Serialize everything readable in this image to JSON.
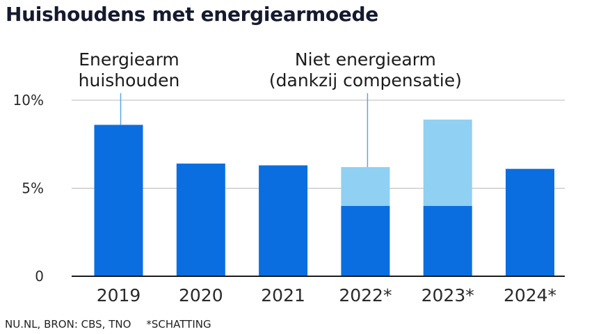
{
  "chart_data": {
    "type": "bar",
    "stacked": true,
    "title": "Huishoudens met energiearmoede",
    "categories": [
      "2019",
      "2020",
      "2021",
      "2022*",
      "2023*",
      "2024*"
    ],
    "series": [
      {
        "name": "Energiearm huishouden",
        "values": [
          8.6,
          6.4,
          6.3,
          4.0,
          4.0,
          6.1
        ],
        "color": "#0a6ee0"
      },
      {
        "name": "Niet energiearm (dankzij compensatie)",
        "values": [
          0,
          0,
          0,
          2.2,
          4.9,
          0
        ],
        "color": "#8fd0f3"
      }
    ],
    "ylim": [
      0,
      10
    ],
    "yticks": [
      0,
      5,
      10
    ],
    "ytick_labels": [
      "0",
      "5%",
      "10%"
    ],
    "grid": true,
    "annotations": [
      {
        "lines": [
          "Energiearm",
          "huishouden"
        ],
        "category": "2019",
        "series": 0
      },
      {
        "lines": [
          "Niet energiearm",
          "(dankzij compensatie)"
        ],
        "category": "2022*",
        "series": 1
      }
    ]
  },
  "footer": {
    "source": "NU.NL, BRON: CBS, TNO",
    "note": "*SCHATTING"
  }
}
